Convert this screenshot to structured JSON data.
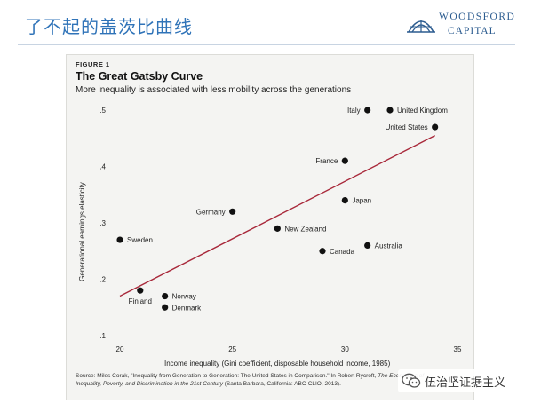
{
  "header": {
    "title": "了不起的盖茨比曲线",
    "logo_line1": "WOODSFORD",
    "logo_line2": "CAPITAL"
  },
  "figure": {
    "label": "FIGURE 1",
    "title": "The Great Gatsby Curve",
    "subtitle": "More inequality is associated with less mobility across the generations",
    "source_prefix": "Source: Miles Corak, \"Inequality from Generation to Generation: The United States in Comparison.\" In Robert Rycroft, ",
    "source_italic1": "The Economics",
    "source_mid": " ",
    "source_italic2": "of Inequality, Poverty, and Discrimination in the 21st Century",
    "source_suffix": " (Santa Barbara, California: ABC-CLIO, 2013)."
  },
  "watermark": {
    "text": "伍治坚证据主义"
  },
  "colors": {
    "accent": "#2f73b8",
    "trend_line": "#a8283a",
    "points": "#111111"
  },
  "chart_data": {
    "type": "scatter",
    "xlabel": "Income inequality (Gini coefficient, disposable household income, 1985)",
    "ylabel": "Generational earnings elasticity",
    "xlim": [
      20,
      35
    ],
    "ylim": [
      0.1,
      0.5
    ],
    "x_ticks": [
      20,
      25,
      30,
      35
    ],
    "y_ticks": [
      0.1,
      0.2,
      0.3,
      0.4,
      0.5
    ],
    "x_tick_labels": [
      "20",
      "25",
      "30",
      "35"
    ],
    "y_tick_labels": [
      ".1",
      ".2",
      ".3",
      ".4",
      ".5"
    ],
    "grid": false,
    "points": [
      {
        "label": "Italy",
        "x": 31,
        "y": 0.5,
        "label_side": "left"
      },
      {
        "label": "United Kingdom",
        "x": 32,
        "y": 0.5,
        "label_side": "right"
      },
      {
        "label": "United States",
        "x": 34,
        "y": 0.47,
        "label_side": "left"
      },
      {
        "label": "France",
        "x": 30,
        "y": 0.41,
        "label_side": "left"
      },
      {
        "label": "Japan",
        "x": 30,
        "y": 0.34,
        "label_side": "right"
      },
      {
        "label": "Germany",
        "x": 25,
        "y": 0.32,
        "label_side": "left"
      },
      {
        "label": "New Zealand",
        "x": 27,
        "y": 0.29,
        "label_side": "right"
      },
      {
        "label": "Sweden",
        "x": 20,
        "y": 0.27,
        "label_side": "right"
      },
      {
        "label": "Australia",
        "x": 31,
        "y": 0.26,
        "label_side": "right"
      },
      {
        "label": "Canada",
        "x": 29,
        "y": 0.25,
        "label_side": "right"
      },
      {
        "label": "Finland",
        "x": 20.9,
        "y": 0.18,
        "label_side": "below"
      },
      {
        "label": "Norway",
        "x": 22,
        "y": 0.17,
        "label_side": "right"
      },
      {
        "label": "Denmark",
        "x": 22,
        "y": 0.15,
        "label_side": "right"
      }
    ],
    "trend_line": {
      "x": [
        20,
        34
      ],
      "y": [
        0.17,
        0.455
      ]
    }
  }
}
